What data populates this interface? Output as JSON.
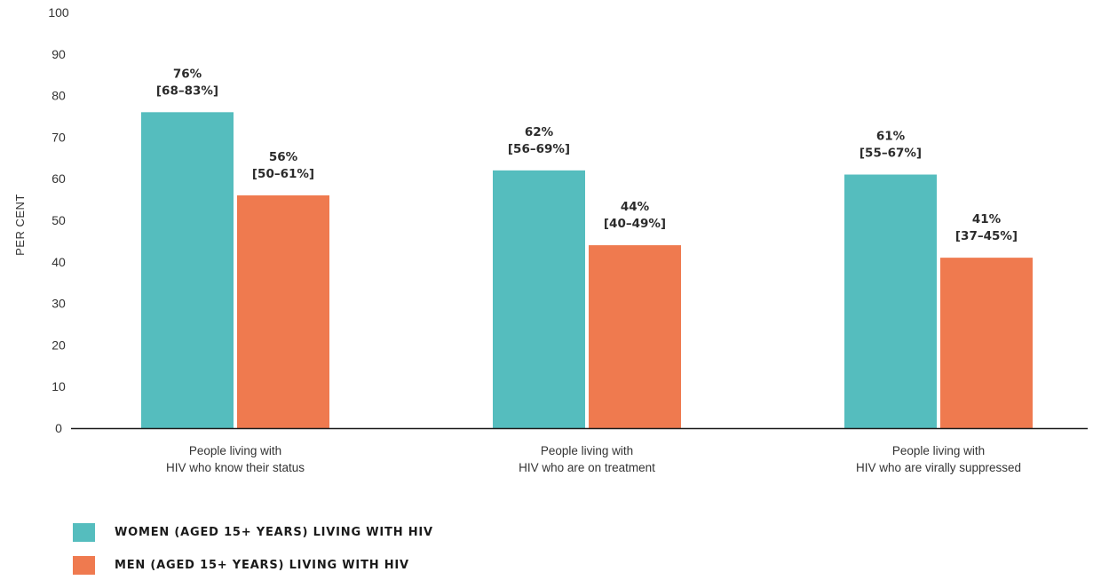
{
  "chart_data": {
    "type": "bar",
    "ylabel": "PER CENT",
    "ylim": [
      0,
      100
    ],
    "yticks": [
      0,
      10,
      20,
      30,
      40,
      50,
      60,
      70,
      80,
      90,
      100
    ],
    "categories": [
      [
        "People living with",
        "HIV who know their status"
      ],
      [
        "People living with",
        "HIV who are on treatment"
      ],
      [
        "People living with",
        "HIV who are virally suppressed"
      ]
    ],
    "series": [
      {
        "name": "WOMEN (AGED 15+ YEARS) LIVING WITH HIV",
        "color": "#55bdbe",
        "values": [
          76,
          62,
          61
        ],
        "labels": [
          [
            "76%",
            "[68–83%]"
          ],
          [
            "62%",
            "[56–69%]"
          ],
          [
            "61%",
            "[55–67%]"
          ]
        ]
      },
      {
        "name": "MEN (AGED 15+ YEARS) LIVING WITH HIV",
        "color": "#ef7a4f",
        "values": [
          56,
          44,
          41
        ],
        "labels": [
          [
            "56%",
            "[50–61%]"
          ],
          [
            "44%",
            "[40–49%]"
          ],
          [
            "41%",
            "[37–45%]"
          ]
        ]
      }
    ],
    "grid": false,
    "legend": "bottom-left"
  }
}
